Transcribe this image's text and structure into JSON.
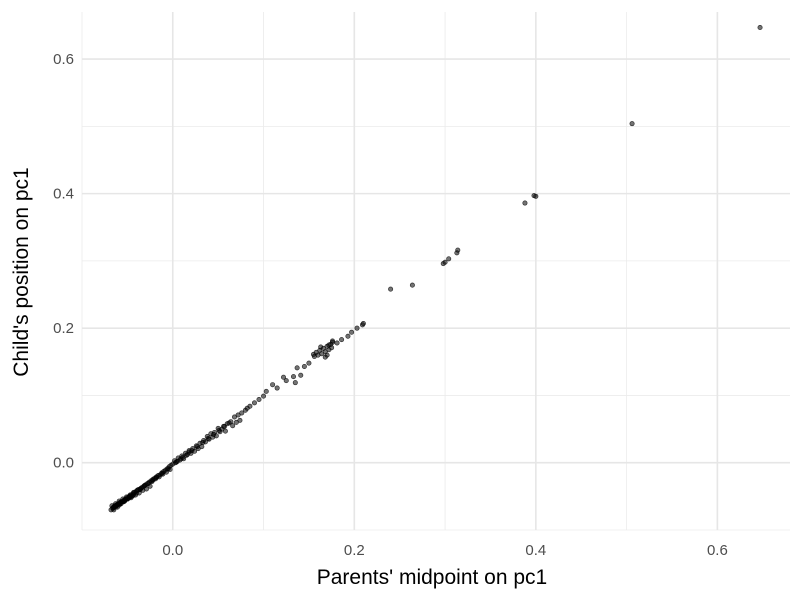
{
  "chart_data": {
    "type": "scatter",
    "title": "",
    "xlabel": "Parents' midpoint on pc1",
    "ylabel": "Child's position on pc1",
    "xlim": [
      -0.1,
      0.68
    ],
    "ylim": [
      -0.1,
      0.67
    ],
    "x_ticks": [
      0.0,
      0.2,
      0.4,
      0.6
    ],
    "x_tick_labels": [
      "0.0",
      "0.2",
      "0.4",
      "0.6"
    ],
    "y_ticks": [
      0.0,
      0.2,
      0.4,
      0.6
    ],
    "y_tick_labels": [
      "0.0",
      "0.2",
      "0.4",
      "0.6"
    ],
    "x_minor_ticks": [
      -0.1,
      0.1,
      0.3,
      0.5
    ],
    "y_minor_ticks": [
      -0.1,
      0.1,
      0.3,
      0.5
    ],
    "grid": true,
    "point_color": "#000000",
    "point_opacity": 0.55,
    "x": [
      0.647,
      0.506,
      0.398,
      0.4,
      0.388,
      0.314,
      0.313,
      0.304,
      0.3,
      0.298,
      0.264,
      0.24,
      0.21,
      0.209,
      0.203,
      0.197,
      0.193,
      0.186,
      0.181,
      0.176,
      0.175,
      0.174,
      0.172,
      0.17,
      0.168,
      0.166,
      0.164,
      0.162,
      0.16,
      0.158,
      0.156,
      0.155,
      0.172,
      0.168,
      0.163,
      0.17,
      0.176,
      0.15,
      0.145,
      0.141,
      0.137,
      0.135,
      0.133,
      0.125,
      0.122,
      0.115,
      0.11,
      0.103,
      0.1,
      0.095,
      0.09,
      0.085,
      0.082,
      0.08,
      0.076,
      0.074,
      0.072,
      0.07,
      0.068,
      0.066,
      0.064,
      0.06,
      0.058,
      0.056,
      0.054,
      0.052,
      0.05,
      0.048,
      0.046,
      0.044,
      0.042,
      0.04,
      0.038,
      0.036,
      0.034,
      0.032,
      0.03,
      0.028,
      0.026,
      0.024,
      0.022,
      0.02,
      0.018,
      0.016,
      0.014,
      0.012,
      0.01,
      0.008,
      0.006,
      0.004,
      0.002,
      0.0,
      0.003,
      0.009,
      0.015,
      0.021,
      0.027,
      0.033,
      0.039,
      0.045,
      0.051,
      0.057,
      0.062,
      -0.002,
      -0.004,
      -0.006,
      -0.008,
      -0.01,
      -0.012,
      -0.014,
      -0.016,
      -0.018,
      -0.02,
      -0.022,
      -0.024,
      -0.026,
      -0.028,
      -0.03,
      -0.032,
      -0.034,
      -0.036,
      -0.038,
      -0.04,
      -0.042,
      -0.044,
      -0.046,
      -0.048,
      -0.05,
      -0.052,
      -0.054,
      -0.056,
      -0.058,
      -0.06,
      -0.062,
      -0.064,
      -0.066,
      -0.068,
      -0.003,
      -0.007,
      -0.011,
      -0.015,
      -0.019,
      -0.023,
      -0.027,
      -0.031,
      -0.035,
      -0.039,
      -0.043,
      -0.047,
      -0.051,
      -0.055,
      -0.059,
      -0.063,
      -0.067,
      -0.025,
      -0.029,
      -0.033,
      -0.037,
      -0.041,
      -0.045,
      -0.049,
      -0.053,
      -0.057,
      -0.061,
      -0.065,
      -0.04,
      -0.044,
      -0.048,
      -0.052,
      -0.056,
      -0.06,
      -0.064,
      -0.046,
      -0.05,
      -0.054,
      -0.058,
      -0.062,
      -0.066,
      -0.055,
      -0.059,
      -0.063,
      -0.057,
      -0.061,
      -0.065,
      -0.05,
      -0.053,
      -0.047,
      -0.043,
      -0.036,
      -0.031,
      -0.022,
      -0.018,
      -0.012,
      -0.005,
      0.005,
      0.011,
      0.018
    ],
    "y": [
      0.647,
      0.504,
      0.397,
      0.396,
      0.386,
      0.316,
      0.312,
      0.303,
      0.298,
      0.296,
      0.264,
      0.258,
      0.207,
      0.205,
      0.2,
      0.194,
      0.188,
      0.183,
      0.178,
      0.179,
      0.171,
      0.176,
      0.168,
      0.173,
      0.165,
      0.17,
      0.162,
      0.167,
      0.16,
      0.164,
      0.158,
      0.161,
      0.175,
      0.157,
      0.172,
      0.16,
      0.181,
      0.148,
      0.143,
      0.13,
      0.141,
      0.119,
      0.128,
      0.122,
      0.127,
      0.111,
      0.116,
      0.106,
      0.099,
      0.094,
      0.089,
      0.084,
      0.081,
      0.078,
      0.074,
      0.063,
      0.071,
      0.06,
      0.068,
      0.055,
      0.061,
      0.058,
      0.047,
      0.054,
      0.05,
      0.046,
      0.051,
      0.04,
      0.045,
      0.038,
      0.043,
      0.035,
      0.039,
      0.031,
      0.033,
      0.024,
      0.029,
      0.021,
      0.025,
      0.017,
      0.021,
      0.014,
      0.018,
      0.012,
      0.014,
      0.006,
      0.01,
      0.004,
      0.007,
      0.001,
      0.003,
      -0.002,
      0.0,
      0.006,
      0.011,
      0.018,
      0.024,
      0.03,
      0.036,
      0.042,
      0.048,
      0.054,
      0.059,
      -0.004,
      -0.006,
      -0.009,
      -0.011,
      -0.013,
      -0.015,
      -0.018,
      -0.019,
      -0.022,
      -0.023,
      -0.025,
      -0.027,
      -0.029,
      -0.031,
      -0.033,
      -0.035,
      -0.037,
      -0.039,
      -0.04,
      -0.042,
      -0.044,
      -0.046,
      -0.048,
      -0.05,
      -0.052,
      -0.054,
      -0.056,
      -0.058,
      -0.059,
      -0.062,
      -0.063,
      -0.065,
      -0.067,
      -0.07,
      -0.01,
      -0.014,
      -0.017,
      -0.021,
      -0.024,
      -0.028,
      -0.031,
      -0.034,
      -0.038,
      -0.041,
      -0.044,
      -0.048,
      -0.051,
      -0.054,
      -0.057,
      -0.061,
      -0.064,
      -0.035,
      -0.039,
      -0.041,
      -0.045,
      -0.048,
      -0.05,
      -0.053,
      -0.056,
      -0.059,
      -0.062,
      -0.066,
      -0.045,
      -0.049,
      -0.051,
      -0.055,
      -0.058,
      -0.061,
      -0.064,
      -0.052,
      -0.054,
      -0.058,
      -0.061,
      -0.064,
      -0.068,
      -0.058,
      -0.063,
      -0.066,
      -0.061,
      -0.066,
      -0.07,
      -0.054,
      -0.057,
      -0.051,
      -0.047,
      -0.04,
      -0.034,
      -0.026,
      -0.021,
      -0.016,
      -0.009,
      0.002,
      0.008,
      0.016
    ]
  }
}
